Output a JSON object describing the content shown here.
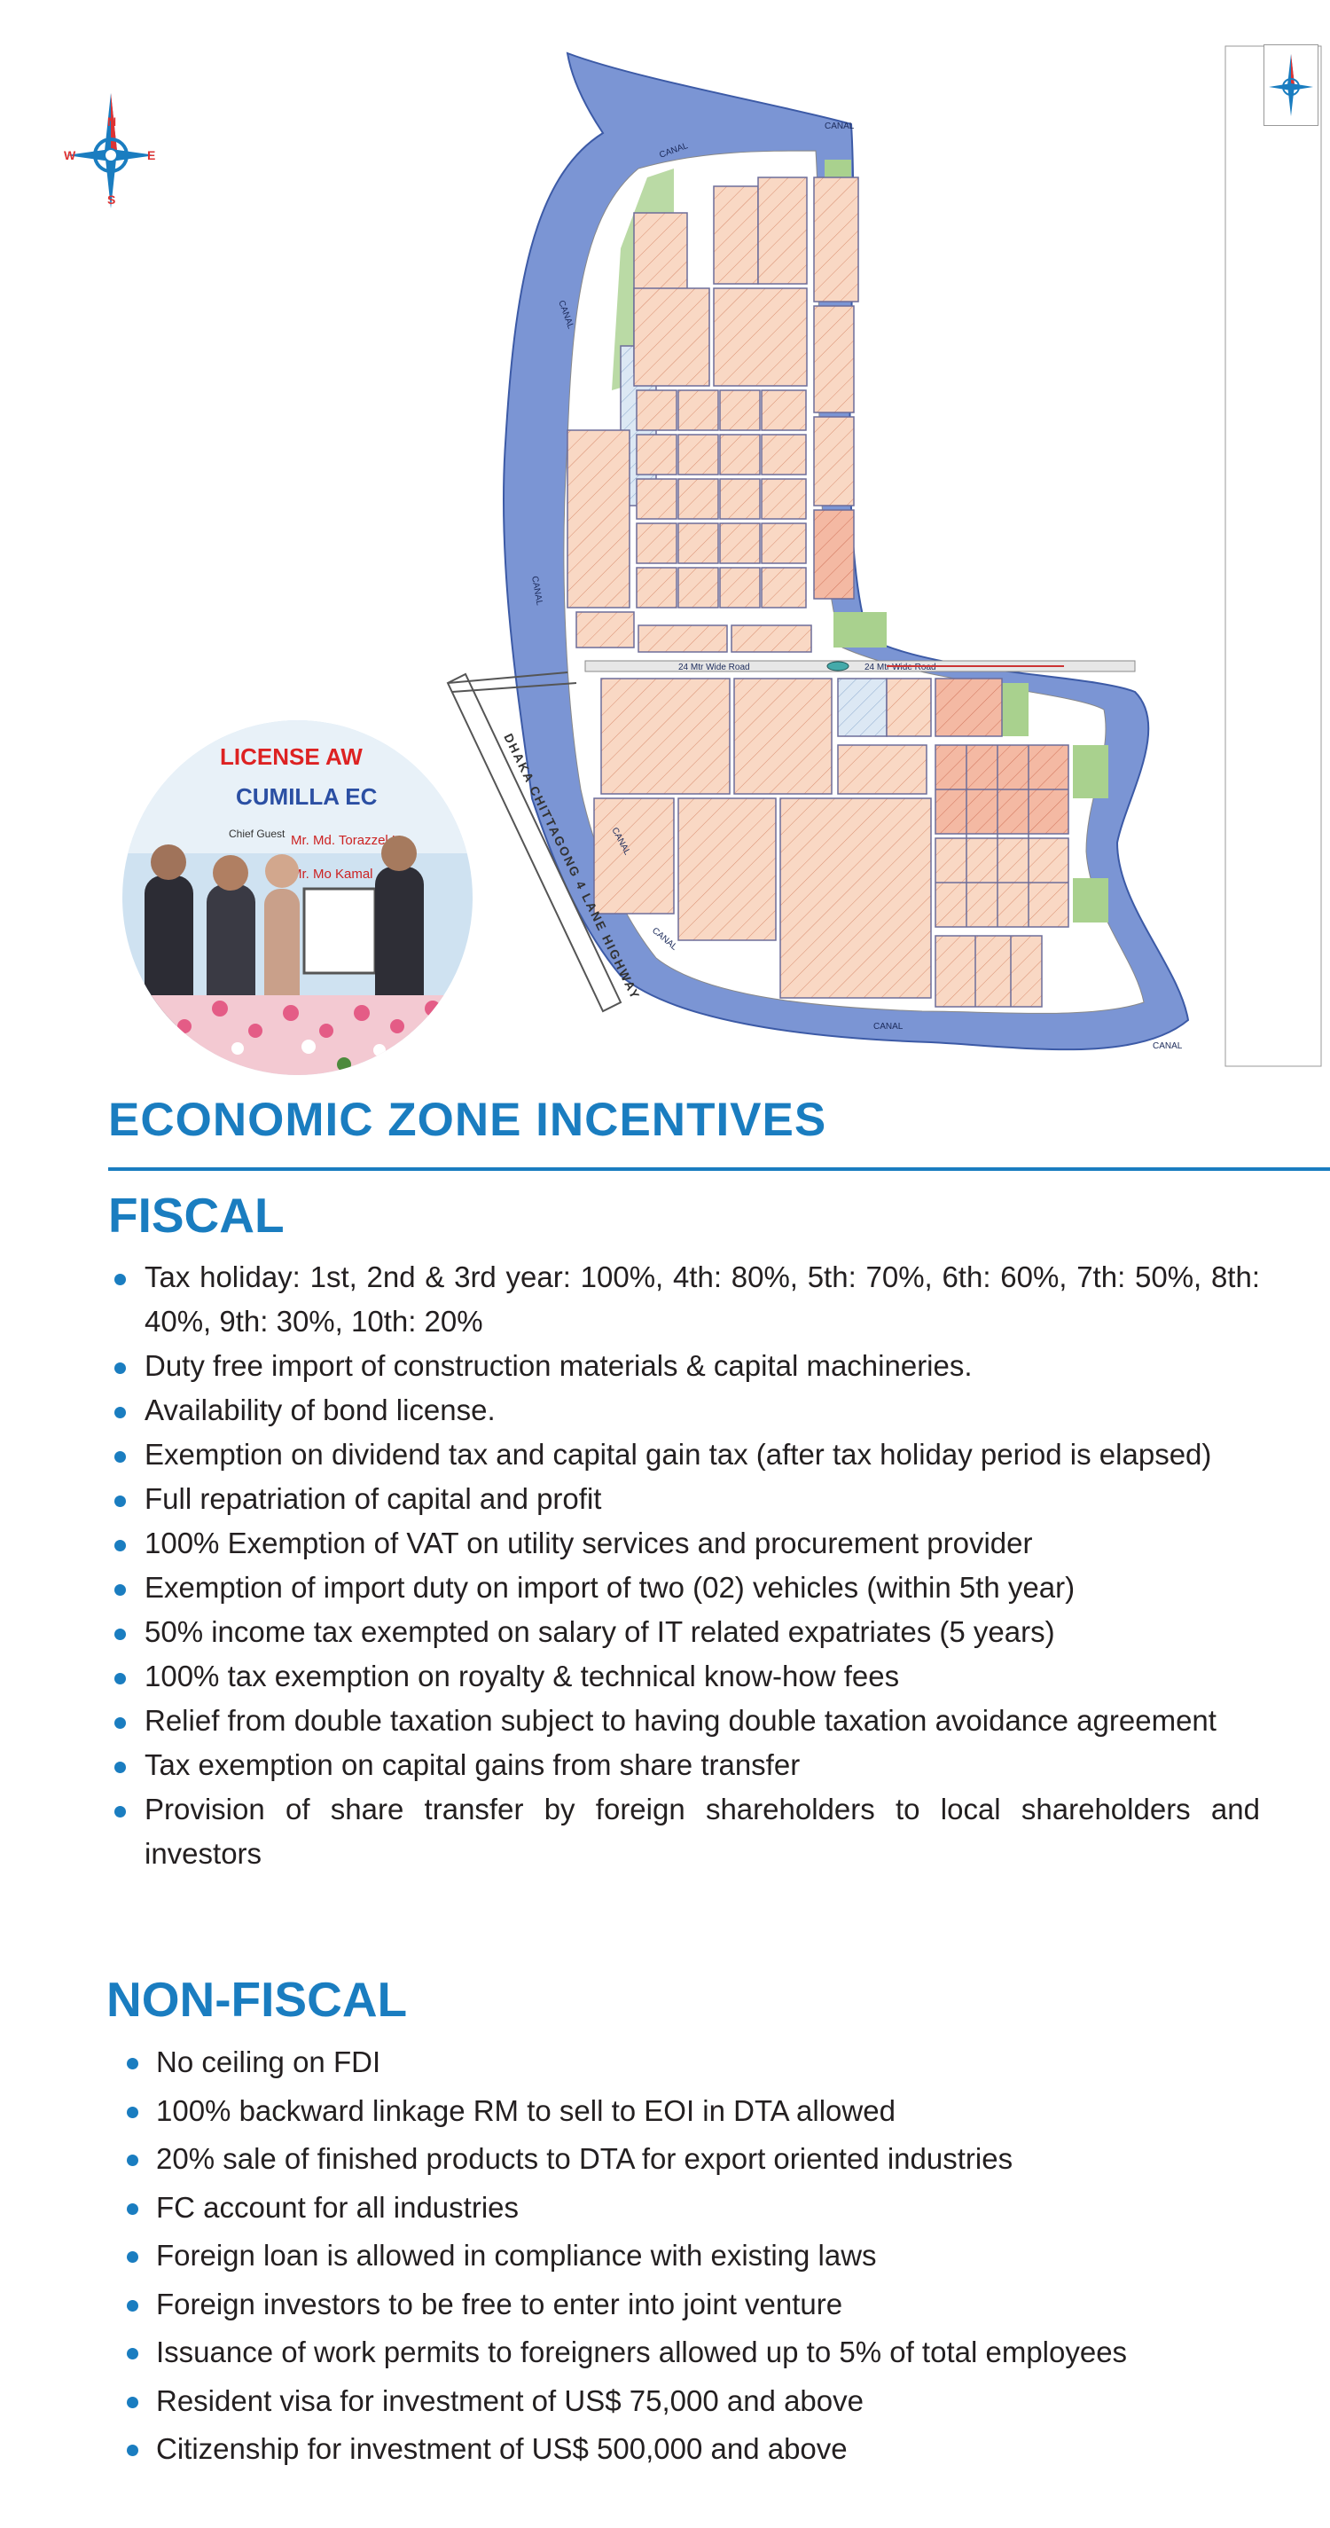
{
  "map": {
    "canal_label": "CANAL",
    "highway_label": "DHAKA CHITTAGONG 4 LANE HIGHWAY",
    "road_label": "24 Mtr Wide Road",
    "compass": {
      "n": "N",
      "s": "S",
      "e": "E",
      "w": "W"
    }
  },
  "photo": {
    "banner_line1": "LICENSE AW",
    "banner_line2": "CUMILLA EC",
    "chief_guest": "Chief Guest",
    "guest_name1": "Mr. Md. Torazzel H",
    "guest_name2": "Mr. Mo   Kamal"
  },
  "colors": {
    "accent": "#1a7dc0",
    "canal": "#7b95d4",
    "plot": "#f8d6c0",
    "green": "#a9d18e"
  },
  "title": "ECONOMIC ZONE INCENTIVES",
  "fiscal": {
    "heading": "FISCAL",
    "items": [
      "Tax holiday: 1st, 2nd & 3rd year: 100%, 4th: 80%, 5th: 70%, 6th: 60%, 7th: 50%, 8th: 40%, 9th: 30%, 10th: 20%",
      "Duty free import of construction materials & capital machineries.",
      "Availability of bond license.",
      "Exemption on dividend tax and capital gain tax (after tax holiday period is elapsed)",
      "Full repatriation of capital and profit",
      "100% Exemption of VAT on utility services and procurement provider",
      "Exemption of import duty on import of two (02) vehicles (within 5th year)",
      "50% income tax exempted on salary of IT related expatriates (5 years)",
      "100% tax exemption on royalty & technical know-how fees",
      "Relief from double taxation subject to having double taxation avoidance agreement",
      "Tax exemption on capital gains from share transfer",
      "Provision of share transfer by foreign shareholders to local shareholders and investors"
    ]
  },
  "nonfiscal": {
    "heading": "NON-FISCAL",
    "items": [
      "No ceiling on FDI",
      "100% backward linkage RM to sell to EOI in DTA allowed",
      "20% sale of finished products to DTA for export oriented industries",
      "FC account for all industries",
      "Foreign loan is allowed in compliance with existing laws",
      "Foreign investors to be free to enter into joint venture",
      "Issuance of work permits to foreigners allowed up to 5% of total employees",
      "Resident visa for investment of US$ 75,000 and above",
      "Citizenship for investment of US$ 500,000 and above"
    ]
  }
}
